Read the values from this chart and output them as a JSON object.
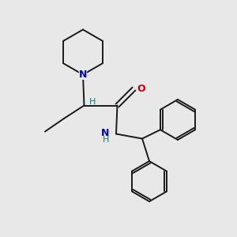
{
  "background_color": "#e8e8e8",
  "bond_color": "#1a1a1a",
  "N_color": "#0000cc",
  "O_color": "#cc0000",
  "H_color": "#008080",
  "line_width": 1.4,
  "fig_size": [
    3.0,
    3.0
  ],
  "dpi": 100,
  "xlim": [
    0,
    10
  ],
  "ylim": [
    0,
    10
  ]
}
